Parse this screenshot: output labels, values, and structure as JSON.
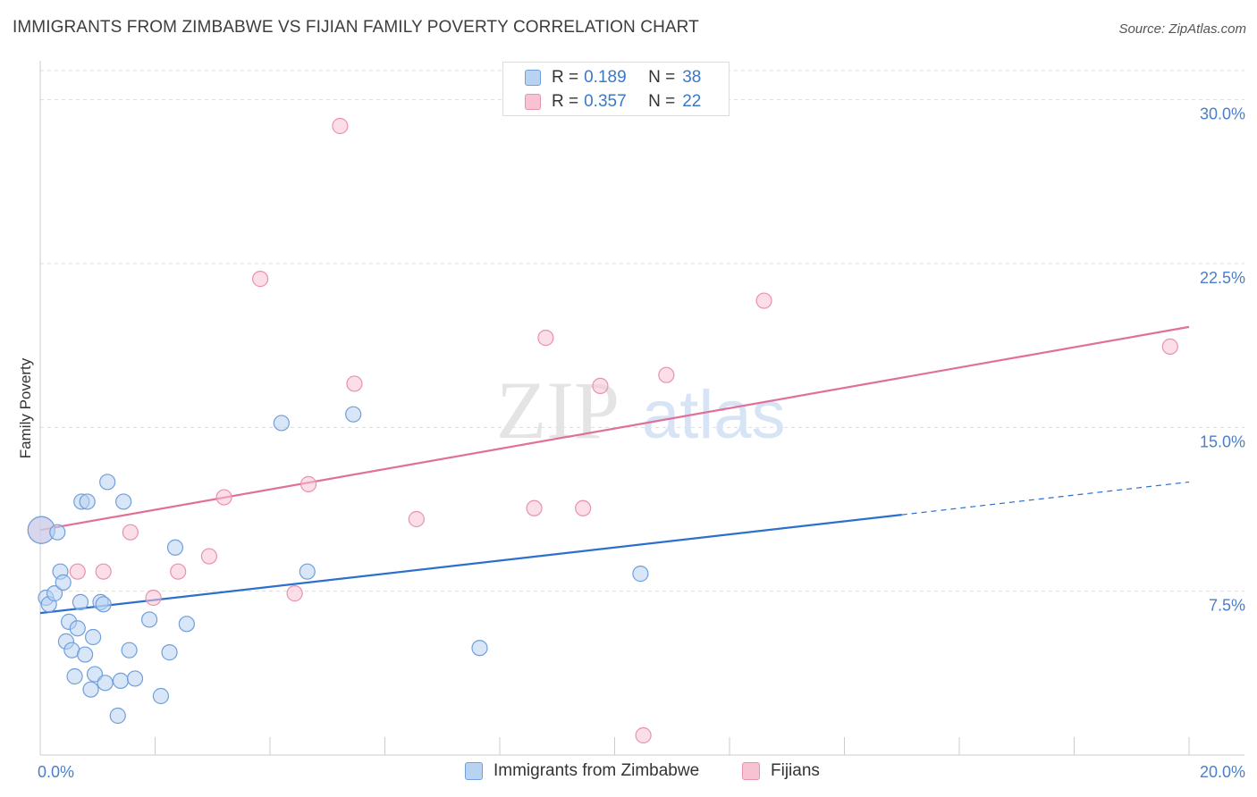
{
  "header": {
    "title": "IMMIGRANTS FROM ZIMBABWE VS FIJIAN FAMILY POVERTY CORRELATION CHART",
    "source": "Source: ZipAtlas.com"
  },
  "legend": {
    "series": [
      {
        "r_label": "R =",
        "r_value": "0.189",
        "n_label": "N =",
        "n_value": "38"
      },
      {
        "r_label": "R =",
        "r_value": "0.357",
        "n_label": "N =",
        "n_value": "22"
      }
    ]
  },
  "bottom_legend": {
    "items": [
      "Immigrants from Zimbabwe",
      "Fijians"
    ]
  },
  "colors": {
    "blue_fill": "#b8d2f2",
    "blue_stroke": "#6f9fdc",
    "blue_line": "#2c6fce",
    "pink_fill": "#f7c3d3",
    "pink_stroke": "#e892ad",
    "pink_line": "#e0709a",
    "grid": "#dddddd",
    "tick_text": "#4a7fc9"
  },
  "watermark": {
    "zip": "ZIP",
    "atlas": "atlas"
  },
  "chart_data": {
    "type": "scatter",
    "title": "IMMIGRANTS FROM ZIMBABWE VS FIJIAN FAMILY POVERTY CORRELATION CHART",
    "xlabel": "",
    "ylabel": "Family Poverty",
    "xlim": [
      0,
      20
    ],
    "ylim": [
      0,
      31.5
    ],
    "x_ticks": [
      "0.0%",
      "20.0%"
    ],
    "y_ticks": [
      {
        "value": 7.5,
        "label": "7.5%"
      },
      {
        "value": 15.0,
        "label": "15.0%"
      },
      {
        "value": 22.5,
        "label": "22.5%"
      },
      {
        "value": 30.0,
        "label": "30.0%"
      }
    ],
    "series": [
      {
        "name": "Immigrants from Zimbabwe",
        "r": 0.189,
        "n": 38,
        "trend": {
          "x0": 0,
          "y0": 6.5,
          "x1": 15.0,
          "y1": 11.0,
          "dash_x1": 20,
          "dash_y1": 12.5
        },
        "points": [
          {
            "x": 0.02,
            "y": 10.3,
            "big": true
          },
          {
            "x": 0.1,
            "y": 7.2
          },
          {
            "x": 0.15,
            "y": 6.9
          },
          {
            "x": 0.25,
            "y": 7.4
          },
          {
            "x": 0.3,
            "y": 10.2
          },
          {
            "x": 0.35,
            "y": 8.4
          },
          {
            "x": 0.4,
            "y": 7.9
          },
          {
            "x": 0.45,
            "y": 5.2
          },
          {
            "x": 0.5,
            "y": 6.1
          },
          {
            "x": 0.55,
            "y": 4.8
          },
          {
            "x": 0.6,
            "y": 3.6
          },
          {
            "x": 0.65,
            "y": 5.8
          },
          {
            "x": 0.72,
            "y": 11.6
          },
          {
            "x": 0.78,
            "y": 4.6
          },
          {
            "x": 0.82,
            "y": 11.6
          },
          {
            "x": 0.88,
            "y": 3.0
          },
          {
            "x": 0.92,
            "y": 5.4
          },
          {
            "x": 0.95,
            "y": 3.7
          },
          {
            "x": 1.05,
            "y": 7.0
          },
          {
            "x": 1.1,
            "y": 6.9
          },
          {
            "x": 1.13,
            "y": 3.3
          },
          {
            "x": 1.17,
            "y": 12.5
          },
          {
            "x": 1.35,
            "y": 1.8
          },
          {
            "x": 1.4,
            "y": 3.4
          },
          {
            "x": 1.45,
            "y": 11.6
          },
          {
            "x": 1.55,
            "y": 4.8
          },
          {
            "x": 1.65,
            "y": 3.5
          },
          {
            "x": 1.9,
            "y": 6.2
          },
          {
            "x": 2.1,
            "y": 2.7
          },
          {
            "x": 2.25,
            "y": 4.7
          },
          {
            "x": 2.35,
            "y": 9.5
          },
          {
            "x": 2.55,
            "y": 6.0
          },
          {
            "x": 4.2,
            "y": 15.2
          },
          {
            "x": 4.65,
            "y": 8.4
          },
          {
            "x": 5.45,
            "y": 15.6
          },
          {
            "x": 7.65,
            "y": 4.9
          },
          {
            "x": 10.45,
            "y": 8.3
          },
          {
            "x": 0.7,
            "y": 7.0
          }
        ]
      },
      {
        "name": "Fijians",
        "r": 0.357,
        "n": 22,
        "trend": {
          "x0": 0,
          "y0": 10.3,
          "x1": 20,
          "y1": 19.6
        },
        "points": [
          {
            "x": 0.02,
            "y": 10.3,
            "big": true
          },
          {
            "x": 0.65,
            "y": 8.4
          },
          {
            "x": 1.1,
            "y": 8.4
          },
          {
            "x": 1.57,
            "y": 10.2
          },
          {
            "x": 1.97,
            "y": 7.2
          },
          {
            "x": 2.4,
            "y": 8.4
          },
          {
            "x": 2.94,
            "y": 9.1
          },
          {
            "x": 3.2,
            "y": 11.8
          },
          {
            "x": 3.83,
            "y": 21.8
          },
          {
            "x": 4.43,
            "y": 7.4
          },
          {
            "x": 4.67,
            "y": 12.4
          },
          {
            "x": 5.22,
            "y": 28.8
          },
          {
            "x": 5.47,
            "y": 17.0
          },
          {
            "x": 6.55,
            "y": 10.8
          },
          {
            "x": 8.6,
            "y": 11.3
          },
          {
            "x": 8.8,
            "y": 19.1
          },
          {
            "x": 9.45,
            "y": 11.3
          },
          {
            "x": 9.75,
            "y": 16.9
          },
          {
            "x": 10.5,
            "y": 0.9
          },
          {
            "x": 10.9,
            "y": 17.4
          },
          {
            "x": 12.6,
            "y": 20.8
          },
          {
            "x": 19.67,
            "y": 18.7
          }
        ]
      }
    ]
  }
}
